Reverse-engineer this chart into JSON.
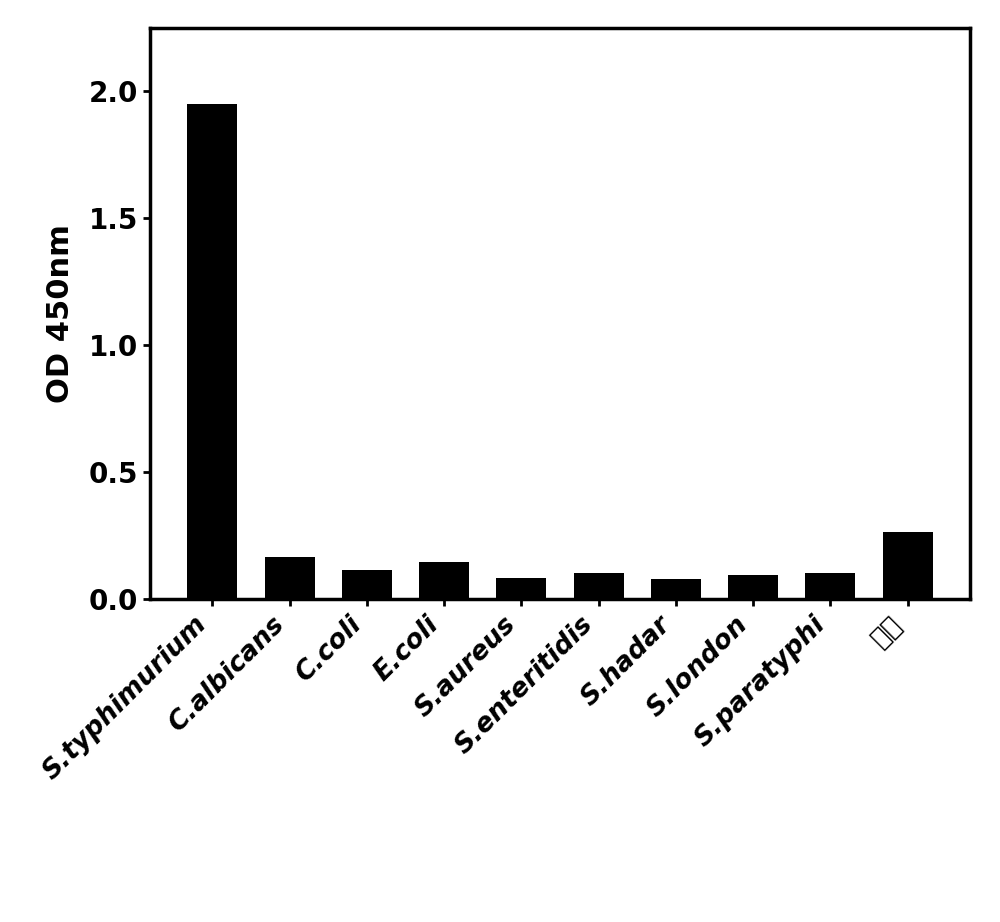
{
  "categories": [
    "S.typhimurium",
    "C.albicans",
    "C.coli",
    "E.coli",
    "S.aureus",
    "S.enteritidis",
    "S.hadar",
    "S.london",
    "S.paratyphi",
    "空白"
  ],
  "values": [
    1.95,
    0.165,
    0.115,
    0.145,
    0.085,
    0.105,
    0.078,
    0.095,
    0.105,
    0.265
  ],
  "bar_color": "#000000",
  "ylabel": "OD 450nm",
  "ylim": [
    0,
    2.25
  ],
  "yticks": [
    0.0,
    0.5,
    1.0,
    1.5,
    2.0
  ],
  "ytick_labels": [
    "0.0",
    "0.5",
    "1.0",
    "1.5",
    "2.0"
  ],
  "background_color": "#ffffff",
  "bar_width": 0.65,
  "label_fontsize": 19,
  "tick_fontsize": 20,
  "ylabel_fontsize": 22,
  "spine_linewidth": 2.5
}
